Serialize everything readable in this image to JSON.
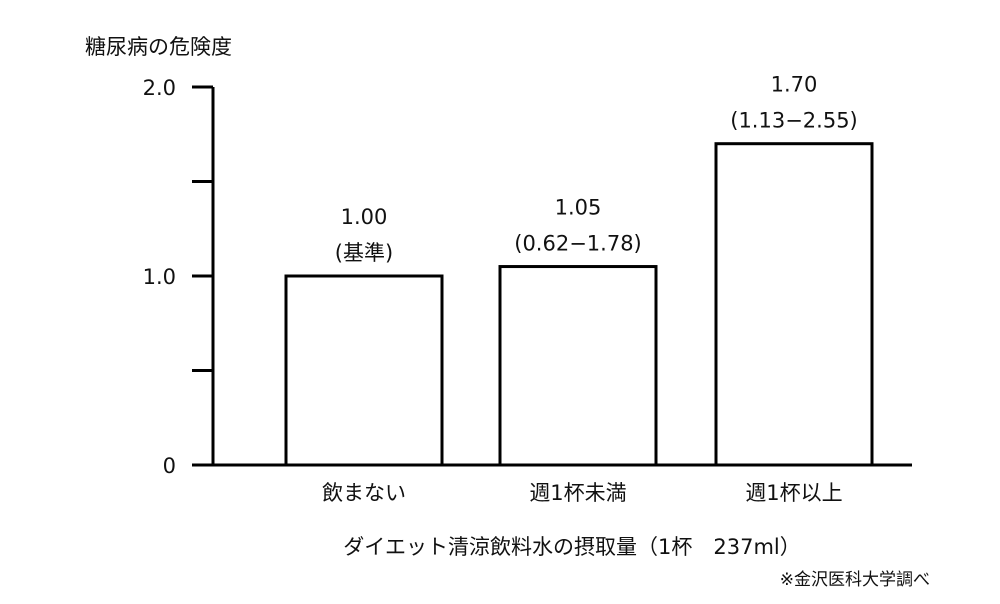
{
  "chart_data": {
    "type": "bar",
    "ylabel": "糖尿病の危険度",
    "xlabel": "ダイエット清涼飲料水の摂取量（1杯　237ml）",
    "note": "※金沢医科大学調べ",
    "categories": [
      "飲まない",
      "週1杯未満",
      "週1杯以上"
    ],
    "values": [
      1.0,
      1.05,
      1.7
    ],
    "value_labels": [
      "1.00",
      "1.05",
      "1.70"
    ],
    "interval_labels": [
      "(基準)",
      "(0.62−1.78)",
      "(1.13−2.55)"
    ],
    "color": "#ffffff",
    "ylim": [
      0,
      2
    ],
    "yticks": [
      0,
      {
        "value": 1,
        "label": "1.0"
      },
      {
        "value": 2,
        "label": "2.0"
      }
    ],
    "minor_yticks": [
      0.5,
      1.5
    ]
  }
}
